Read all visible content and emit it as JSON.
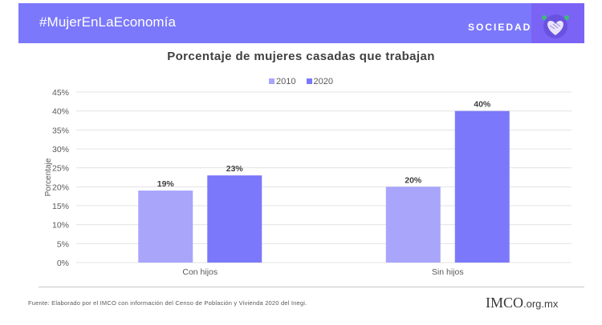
{
  "header": {
    "hashtag": "#MujerEnLaEconomía",
    "section": "SOCIEDAD",
    "badge_icon": "handshake-heart-icon",
    "colors": {
      "banner": "#7b78fb",
      "badge": "#7b63f6"
    }
  },
  "chart_data": {
    "type": "bar",
    "title": "Porcentaje de mujeres casadas que trabajan",
    "xlabel": "",
    "ylabel": "Porcentaje",
    "categories": [
      "Con hijos",
      "Sin hijos"
    ],
    "series": [
      {
        "name": "2010",
        "values": [
          19,
          20
        ],
        "labels": [
          "19%",
          "20%"
        ],
        "color": "#a8a5fb"
      },
      {
        "name": "2020",
        "values": [
          23,
          40
        ],
        "labels": [
          "23%",
          "40%"
        ],
        "color": "#7b78fb"
      }
    ],
    "ylim": [
      0,
      45
    ],
    "yticks": [
      0,
      5,
      10,
      15,
      20,
      25,
      30,
      35,
      40,
      45
    ],
    "ytick_labels": [
      "0%",
      "5%",
      "10%",
      "15%",
      "20%",
      "25%",
      "30%",
      "35%",
      "40%",
      "45%"
    ],
    "grid": true,
    "legend_position": "top-center"
  },
  "footer": {
    "source": "Fuente:  Elaborado  por el IMCO  con información  del Censo  de Población  y Vivienda  2020 del Inegi.",
    "logo_text": "IMCO",
    "logo_domain": ".org.mx"
  }
}
